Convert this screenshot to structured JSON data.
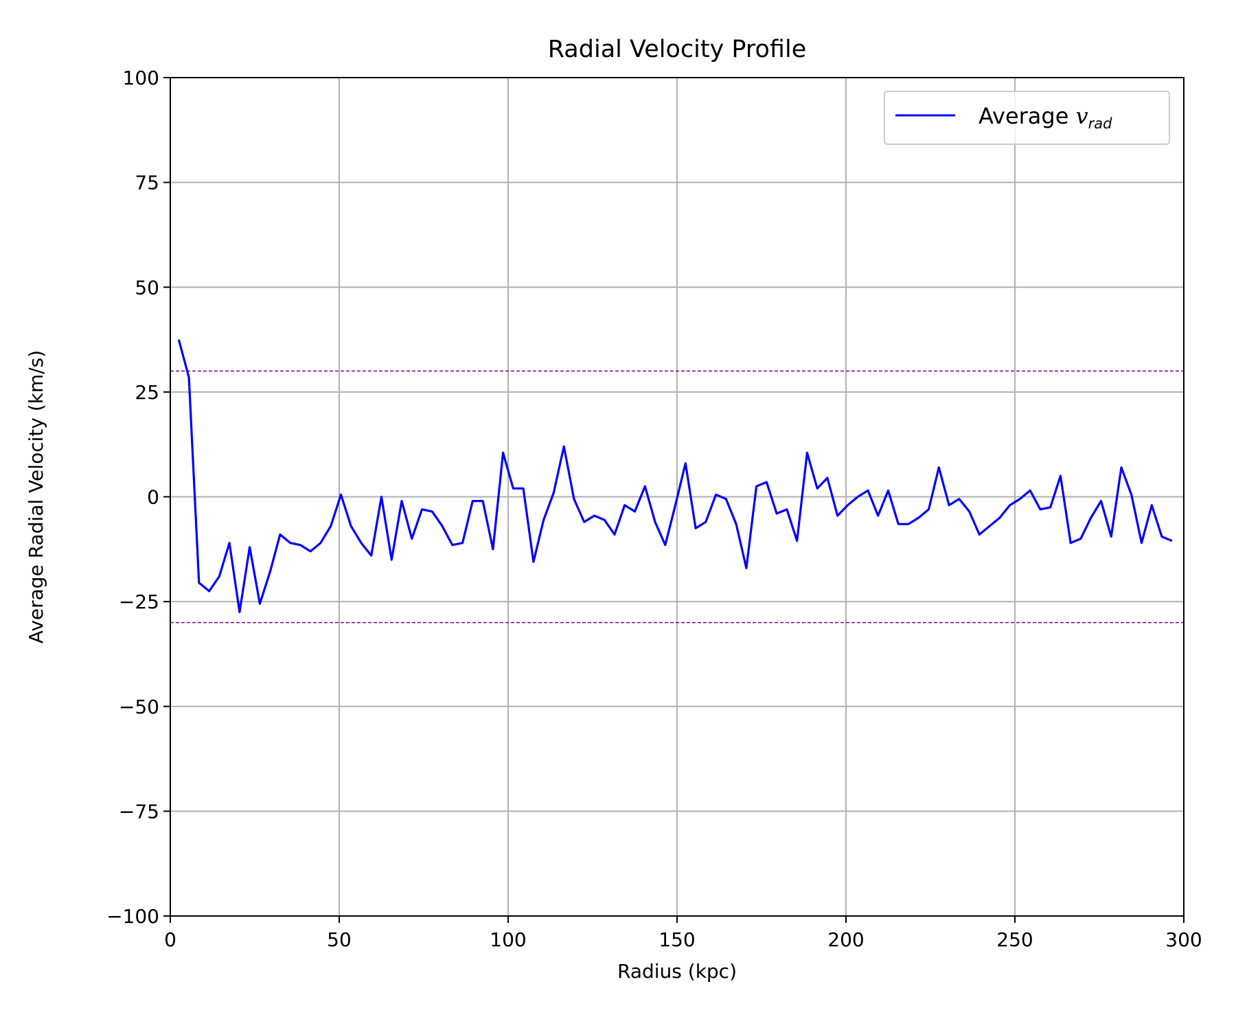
{
  "chart_data": {
    "type": "line",
    "title": "Radial Velocity Profile",
    "xlabel": "Radius (kpc)",
    "ylabel": "Average Radial Velocity (km/s)",
    "xlim": [
      0,
      300
    ],
    "ylim": [
      -100,
      100
    ],
    "xticks": [
      0,
      50,
      100,
      150,
      200,
      250,
      300
    ],
    "yticks": [
      -100,
      -75,
      -50,
      -25,
      0,
      25,
      50,
      75,
      100
    ],
    "xtick_labels": [
      "0",
      "50",
      "100",
      "150",
      "200",
      "250",
      "300"
    ],
    "ytick_labels": [
      "−100",
      "−75",
      "−50",
      "−25",
      "0",
      "25",
      "50",
      "75",
      "100"
    ],
    "grid": true,
    "legend": {
      "placement": "top-right",
      "label_prefix": "Average ",
      "label_var": "v",
      "label_sub": "rad"
    },
    "colors": {
      "series": "#0000ff",
      "reference": "#800080",
      "grid": "#b0b0b0"
    },
    "reference_lines": [
      30,
      -30
    ],
    "series": [
      {
        "name": "Average v_rad",
        "x": [
          2.5,
          5.5,
          8.5,
          11.5,
          14.5,
          17.5,
          20.5,
          23.5,
          26.5,
          29.5,
          32.5,
          35.5,
          38.5,
          41.5,
          44.5,
          47.5,
          50.5,
          53.5,
          56.5,
          59.5,
          62.5,
          65.5,
          68.5,
          71.5,
          74.5,
          77.5,
          80.5,
          83.5,
          86.5,
          89.5,
          92.5,
          95.5,
          98.5,
          101.5,
          104.5,
          107.5,
          110.5,
          113.5,
          116.5,
          119.5,
          122.5,
          125.5,
          128.5,
          131.5,
          134.5,
          137.5,
          140.5,
          143.5,
          146.5,
          149.5,
          152.5,
          155.5,
          158.5,
          161.5,
          164.5,
          167.5,
          170.5,
          173.5,
          176.5,
          179.5,
          182.5,
          185.5,
          188.5,
          191.5,
          194.5,
          197.5,
          200.5,
          203.5,
          206.5,
          209.5,
          212.5,
          215.5,
          218.5,
          221.5,
          224.5,
          227.5,
          230.5,
          233.5,
          236.5,
          239.5,
          242.5,
          245.5,
          248.5,
          251.5,
          254.5,
          257.5,
          260.5,
          263.5,
          266.5,
          269.5,
          272.5,
          275.5,
          278.5,
          281.5,
          284.5,
          287.5,
          290.5,
          293.5,
          296.5
        ],
        "y": [
          37.5,
          28.5,
          -20.5,
          -22.5,
          -19,
          -11,
          -27.5,
          -12,
          -25.5,
          -18,
          -9,
          -11,
          -11.5,
          -13,
          -11,
          -7,
          0.5,
          -7,
          -11,
          -14,
          0,
          -15,
          -1,
          -10,
          -3,
          -3.5,
          -7,
          -11.5,
          -11,
          -1,
          -1,
          -12.5,
          10.5,
          2,
          2,
          -15.5,
          -5.5,
          1,
          12,
          -0.5,
          -6,
          -4.5,
          -5.5,
          -9,
          -2,
          -3.5,
          2.5,
          -6,
          -11.5,
          -2,
          8,
          -7.5,
          -6,
          0.5,
          -0.5,
          -6.5,
          -17,
          2.5,
          3.5,
          -4,
          -3,
          -10.5,
          10.5,
          2,
          4.5,
          -4.5,
          -2,
          0,
          1.5,
          -4.5,
          1.5,
          -6.5,
          -6.5,
          -5,
          -3,
          7,
          -2,
          -0.5,
          -3.5,
          -9,
          -7,
          -5,
          -2,
          -0.5,
          1.5,
          -3,
          -2.5,
          5,
          -11,
          -10,
          -5,
          -1,
          -9.5,
          7,
          0.5,
          -11,
          -2,
          -9.5,
          -10.5
        ]
      }
    ]
  }
}
